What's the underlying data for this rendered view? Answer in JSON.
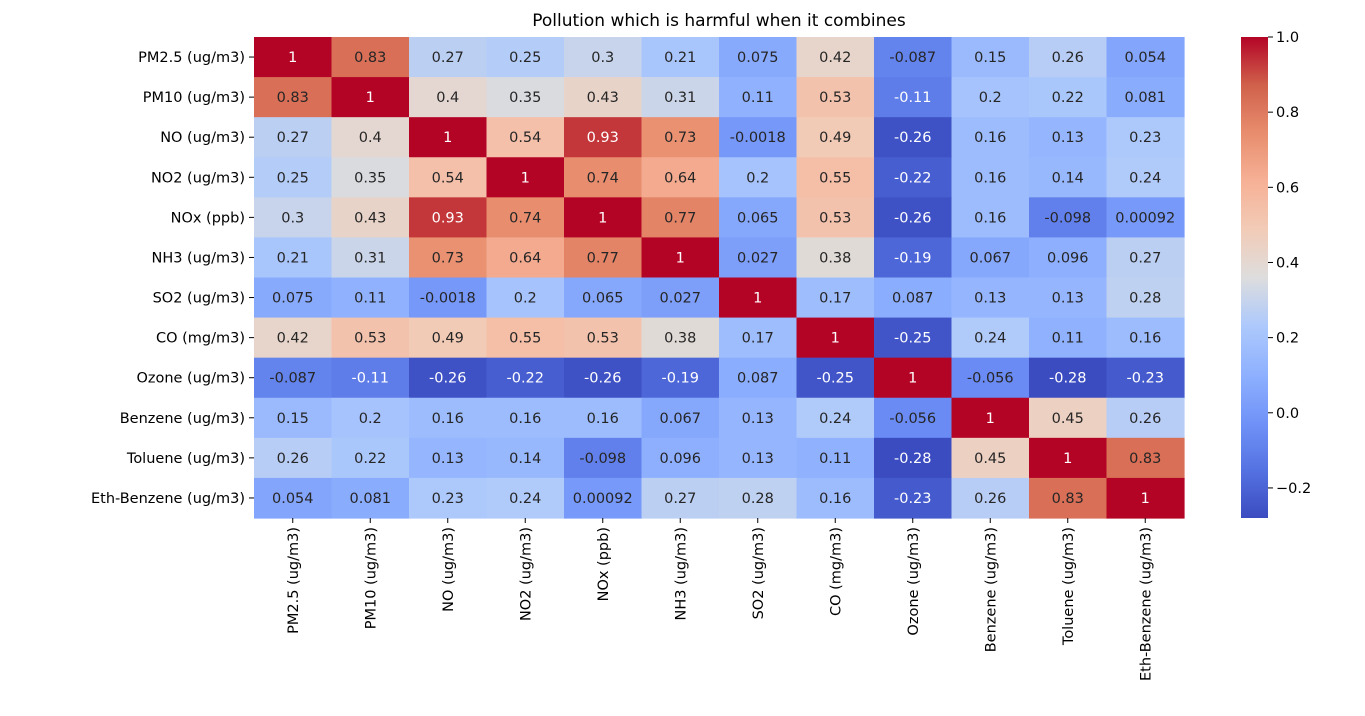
{
  "chart_data": {
    "type": "heatmap",
    "title": "Pollution which is harmful when it combines",
    "xlabel": "",
    "ylabel": "",
    "colormap": "coolwarm",
    "vmin": -0.28,
    "vmax": 1.0,
    "row_labels": [
      "PM2.5 (ug/m3)",
      "PM10 (ug/m3)",
      "NO (ug/m3)",
      "NO2 (ug/m3)",
      "NOx (ppb)",
      "NH3 (ug/m3)",
      "SO2 (ug/m3)",
      "CO (mg/m3)",
      "Ozone (ug/m3)",
      "Benzene (ug/m3)",
      "Toluene (ug/m3)",
      "Eth-Benzene (ug/m3)"
    ],
    "column_labels": [
      "PM2.5 (ug/m3)",
      "PM10 (ug/m3)",
      "NO (ug/m3)",
      "NO2 (ug/m3)",
      "NOx (ppb)",
      "NH3 (ug/m3)",
      "SO2 (ug/m3)",
      "CO (mg/m3)",
      "Ozone (ug/m3)",
      "Benzene (ug/m3)",
      "Toluene (ug/m3)",
      "Eth-Benzene (ug/m3)"
    ],
    "values": [
      [
        "1",
        "0.83",
        "0.27",
        "0.25",
        "0.3",
        "0.21",
        "0.075",
        "0.42",
        "-0.087",
        "0.15",
        "0.26",
        "0.054"
      ],
      [
        "0.83",
        "1",
        "0.4",
        "0.35",
        "0.43",
        "0.31",
        "0.11",
        "0.53",
        "-0.11",
        "0.2",
        "0.22",
        "0.081"
      ],
      [
        "0.27",
        "0.4",
        "1",
        "0.54",
        "0.93",
        "0.73",
        "-0.0018",
        "0.49",
        "-0.26",
        "0.16",
        "0.13",
        "0.23"
      ],
      [
        "0.25",
        "0.35",
        "0.54",
        "1",
        "0.74",
        "0.64",
        "0.2",
        "0.55",
        "-0.22",
        "0.16",
        "0.14",
        "0.24"
      ],
      [
        "0.3",
        "0.43",
        "0.93",
        "0.74",
        "1",
        "0.77",
        "0.065",
        "0.53",
        "-0.26",
        "0.16",
        "-0.098",
        "0.00092"
      ],
      [
        "0.21",
        "0.31",
        "0.73",
        "0.64",
        "0.77",
        "1",
        "0.027",
        "0.38",
        "-0.19",
        "0.067",
        "0.096",
        "0.27"
      ],
      [
        "0.075",
        "0.11",
        "-0.0018",
        "0.2",
        "0.065",
        "0.027",
        "1",
        "0.17",
        "0.087",
        "0.13",
        "0.13",
        "0.28"
      ],
      [
        "0.42",
        "0.53",
        "0.49",
        "0.55",
        "0.53",
        "0.38",
        "0.17",
        "1",
        "-0.25",
        "0.24",
        "0.11",
        "0.16"
      ],
      [
        "-0.087",
        "-0.11",
        "-0.26",
        "-0.22",
        "-0.26",
        "-0.19",
        "0.087",
        "-0.25",
        "1",
        "-0.056",
        "-0.28",
        "-0.23"
      ],
      [
        "0.15",
        "0.2",
        "0.16",
        "0.16",
        "0.16",
        "0.067",
        "0.13",
        "0.24",
        "-0.056",
        "1",
        "0.45",
        "0.26"
      ],
      [
        "0.26",
        "0.22",
        "0.13",
        "0.14",
        "-0.098",
        "0.096",
        "0.13",
        "0.11",
        "-0.28",
        "0.45",
        "1",
        "0.83"
      ],
      [
        "0.054",
        "0.081",
        "0.23",
        "0.24",
        "0.00092",
        "0.27",
        "0.28",
        "0.16",
        "-0.23",
        "0.26",
        "0.83",
        "1"
      ]
    ],
    "colorbar": {
      "ticks": [
        "1.0",
        "0.8",
        "0.6",
        "0.4",
        "0.2",
        "0.0",
        "−0.2"
      ],
      "tick_values": [
        1.0,
        0.8,
        0.6,
        0.4,
        0.2,
        0.0,
        -0.2
      ]
    },
    "grid": false
  }
}
